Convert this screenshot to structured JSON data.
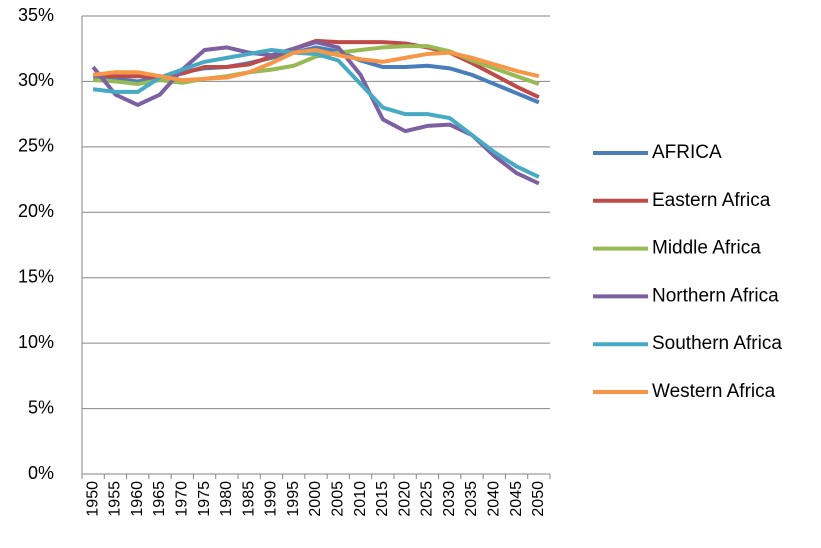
{
  "chart_data": {
    "type": "line",
    "categories": [
      "1950",
      "1955",
      "1960",
      "1965",
      "1970",
      "1975",
      "1980",
      "1985",
      "1990",
      "1995",
      "2000",
      "2005",
      "2010",
      "2015",
      "2020",
      "2025",
      "2030",
      "2035",
      "2040",
      "2045",
      "2050"
    ],
    "series": [
      {
        "name": "AFRICA",
        "color": "#4a7ebb",
        "values": [
          30.3,
          30.2,
          30.0,
          30.3,
          30.7,
          31.0,
          31.1,
          31.4,
          31.8,
          32.2,
          32.6,
          32.3,
          31.6,
          31.1,
          31.1,
          31.2,
          31.0,
          30.5,
          29.8,
          29.1,
          28.4
        ]
      },
      {
        "name": "Eastern Africa",
        "color": "#be4b48",
        "values": [
          30.5,
          30.4,
          30.4,
          30.3,
          30.6,
          31.1,
          31.1,
          31.3,
          31.9,
          32.5,
          33.1,
          33.0,
          33.0,
          33.0,
          32.9,
          32.6,
          32.2,
          31.4,
          30.5,
          29.6,
          28.8
        ]
      },
      {
        "name": "Middle Africa",
        "color": "#98b954",
        "values": [
          30.1,
          30.0,
          29.8,
          30.1,
          29.9,
          30.2,
          30.4,
          30.7,
          30.9,
          31.2,
          31.9,
          32.2,
          32.4,
          32.6,
          32.7,
          32.7,
          32.3,
          31.6,
          31.0,
          30.4,
          29.8
        ]
      },
      {
        "name": "Northern Africa",
        "color": "#7d60a0",
        "values": [
          31.1,
          29.0,
          28.2,
          29.0,
          30.9,
          32.4,
          32.6,
          32.2,
          32.0,
          32.5,
          33.0,
          32.6,
          30.5,
          27.1,
          26.2,
          26.6,
          26.7,
          25.9,
          24.3,
          23.0,
          22.2
        ]
      },
      {
        "name": "Southern Africa",
        "color": "#46aac5",
        "values": [
          29.4,
          29.2,
          29.2,
          30.3,
          30.9,
          31.5,
          31.8,
          32.1,
          32.4,
          32.2,
          32.1,
          31.6,
          29.8,
          28.0,
          27.5,
          27.5,
          27.2,
          25.9,
          24.6,
          23.5,
          22.7
        ]
      },
      {
        "name": "Western Africa",
        "color": "#f79646",
        "values": [
          30.5,
          30.7,
          30.7,
          30.4,
          30.1,
          30.2,
          30.3,
          30.7,
          31.4,
          32.2,
          32.4,
          32.0,
          31.7,
          31.5,
          31.8,
          32.1,
          32.2,
          31.8,
          31.3,
          30.8,
          30.4
        ]
      }
    ],
    "ylim": [
      0,
      35
    ],
    "yticks": [
      {
        "value": 0,
        "label": "0%"
      },
      {
        "value": 5,
        "label": "5%"
      },
      {
        "value": 10,
        "label": "10%"
      },
      {
        "value": 15,
        "label": "15%"
      },
      {
        "value": 20,
        "label": "20%"
      },
      {
        "value": 25,
        "label": "25%"
      },
      {
        "value": 30,
        "label": "30%"
      },
      {
        "value": 35,
        "label": "35%"
      }
    ],
    "grid": true,
    "legend": "right"
  }
}
